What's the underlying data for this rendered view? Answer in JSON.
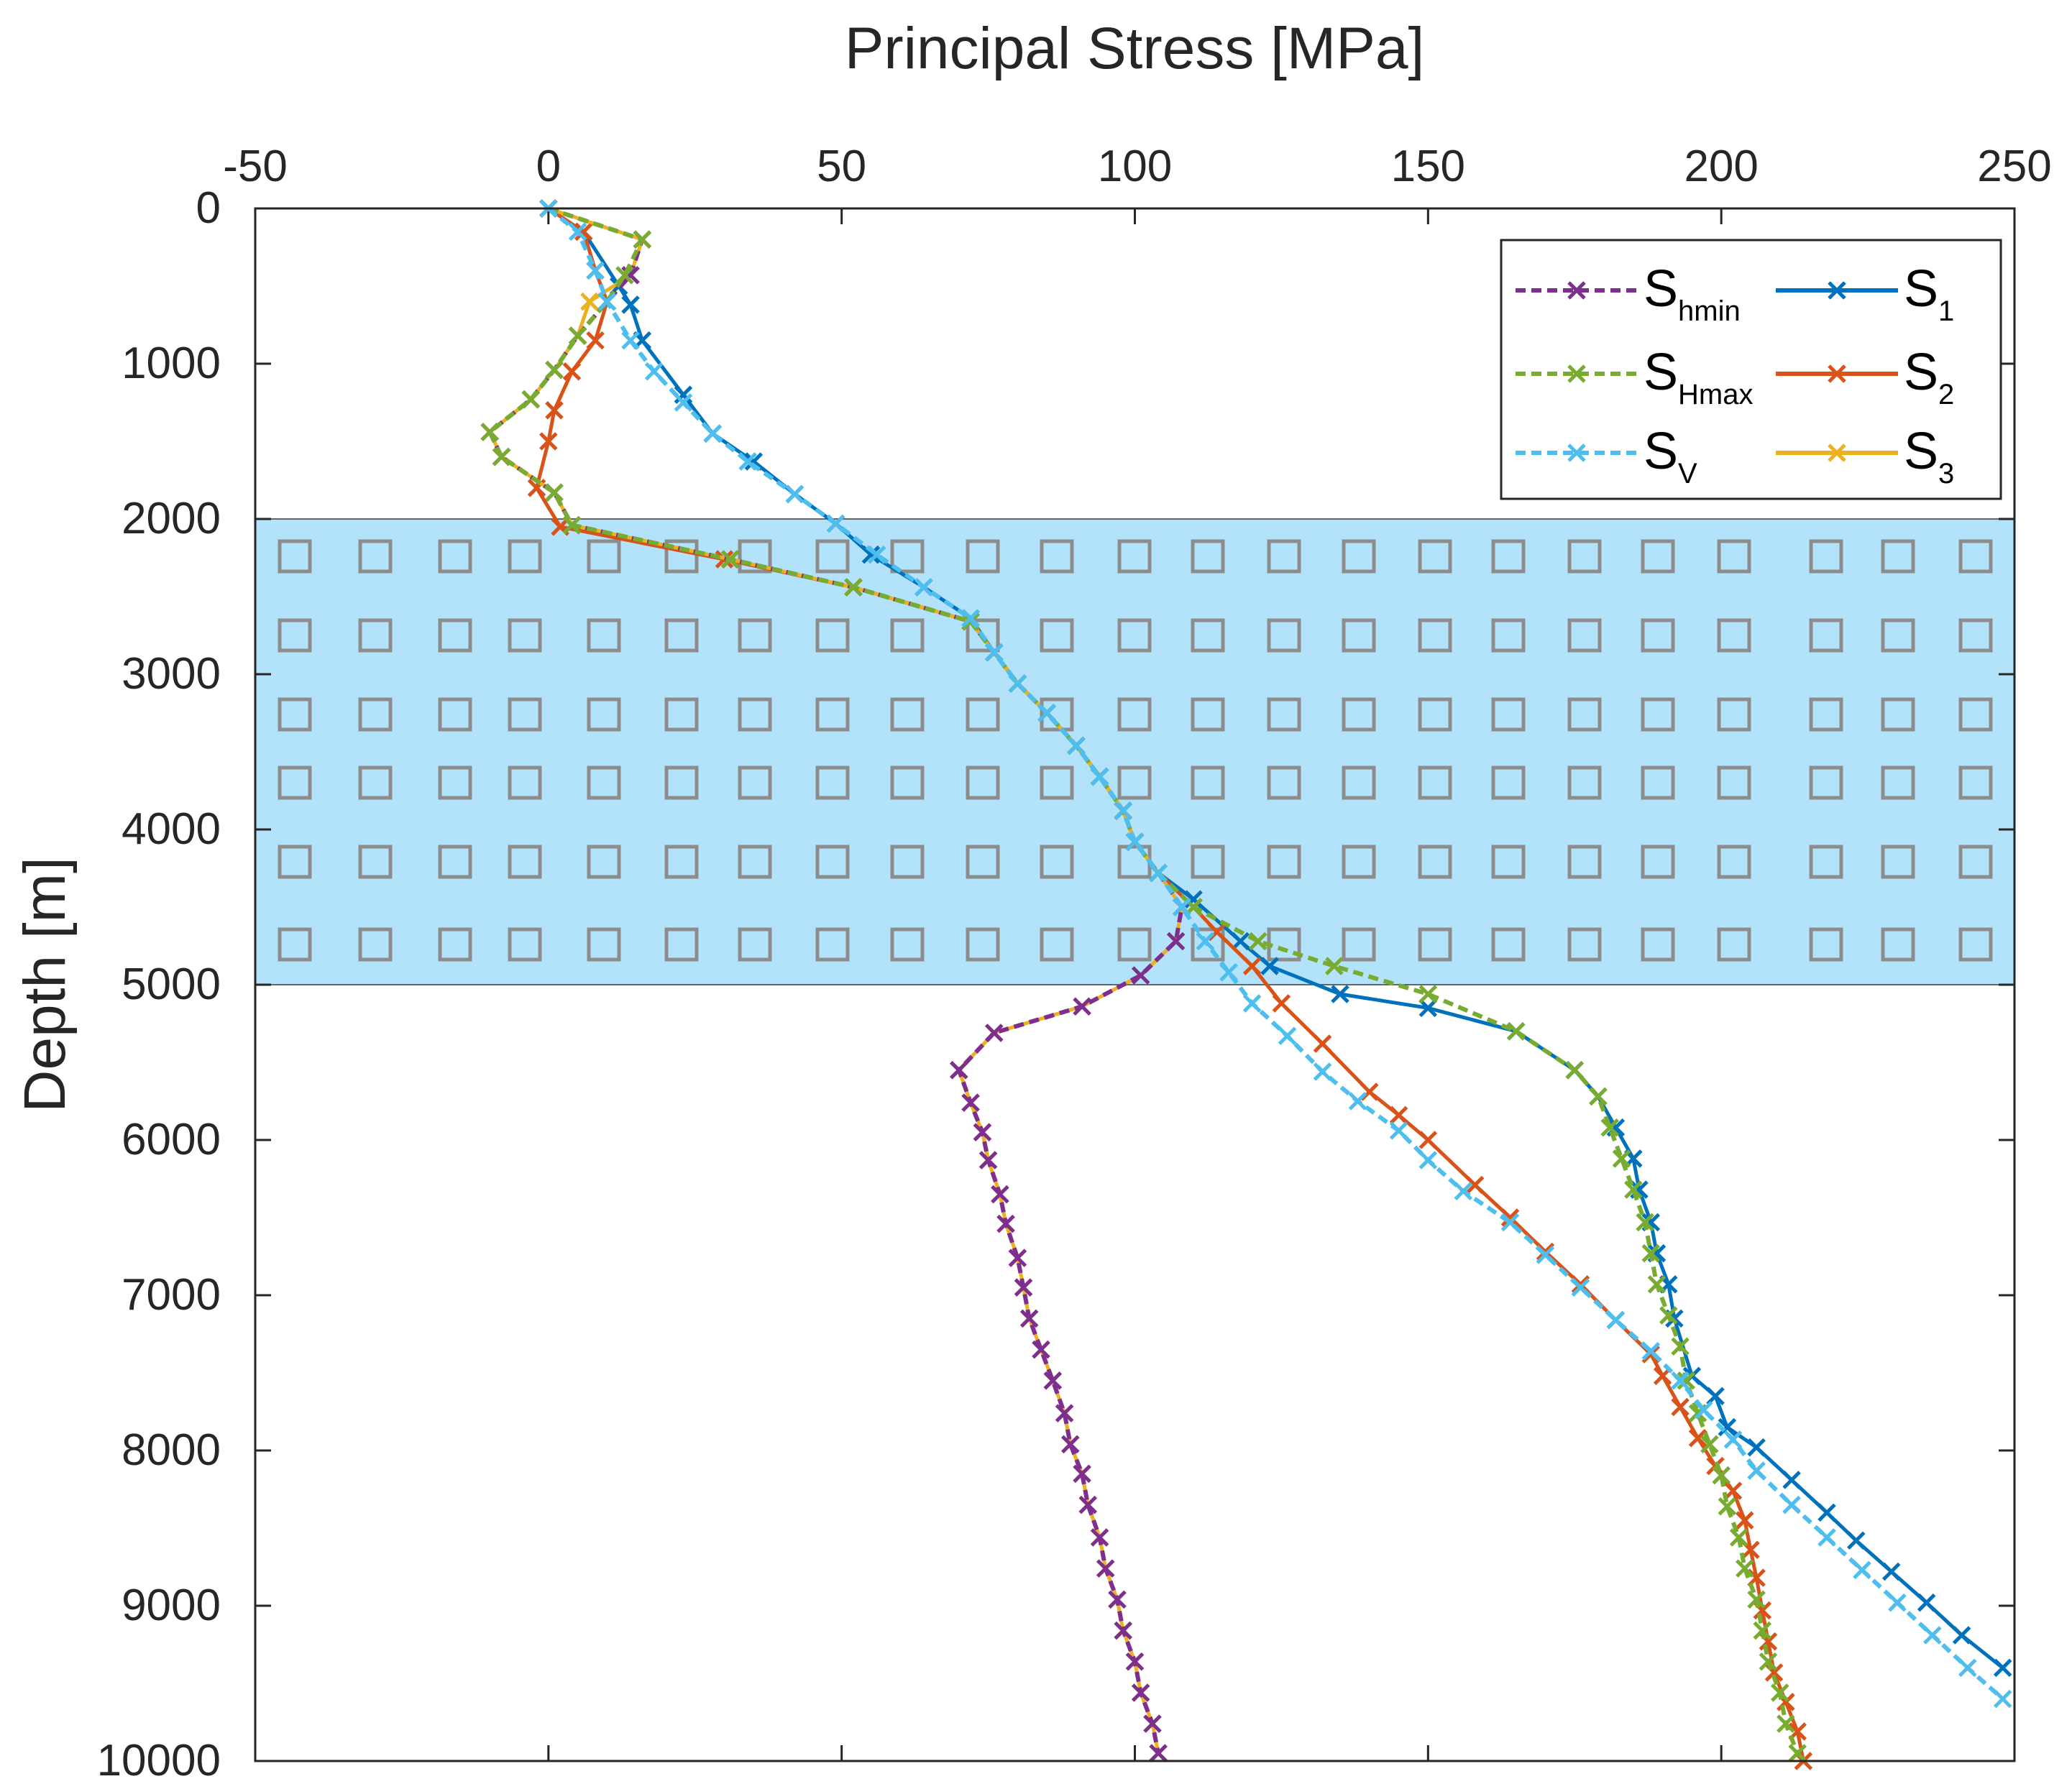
{
  "chart_data": {
    "type": "line",
    "title": "",
    "xlabel": "Principal Stress [MPa]",
    "ylabel": "Depth [m]",
    "xlim": [
      -50,
      250
    ],
    "ylim": [
      0,
      10000
    ],
    "y_reversed": true,
    "x_axis_position": "top",
    "xticks": [
      -50,
      0,
      50,
      100,
      150,
      200,
      250
    ],
    "yticks": [
      0,
      1000,
      2000,
      3000,
      4000,
      5000,
      6000,
      7000,
      8000,
      9000,
      10000
    ],
    "shaded_region": {
      "depth_from": 2000,
      "depth_to": 5000,
      "fill": "#b3e2fb",
      "marker": "square"
    },
    "legend_position": "top-right",
    "series": [
      {
        "name": "S1",
        "label_main": "S",
        "label_sub": "1",
        "style": "solid",
        "color": "#0072bd",
        "points": [
          [
            0,
            0
          ],
          [
            6,
            150
          ],
          [
            12,
            500
          ],
          [
            14,
            620
          ],
          [
            16,
            850
          ],
          [
            23,
            1200
          ],
          [
            28,
            1450
          ],
          [
            35,
            1630
          ],
          [
            42,
            1840
          ],
          [
            49,
            2030
          ],
          [
            55,
            2230
          ],
          [
            64,
            2440
          ],
          [
            72,
            2640
          ],
          [
            76,
            2860
          ],
          [
            80,
            3060
          ],
          [
            85,
            3250
          ],
          [
            90,
            3460
          ],
          [
            94,
            3660
          ],
          [
            98,
            3880
          ],
          [
            100,
            4080
          ],
          [
            104,
            4280
          ],
          [
            110,
            4450
          ],
          [
            118,
            4720
          ],
          [
            123,
            4880
          ],
          [
            135,
            5060
          ],
          [
            150,
            5150
          ],
          [
            165,
            5300
          ],
          [
            175,
            5550
          ],
          [
            179,
            5720
          ],
          [
            182,
            5920
          ],
          [
            185,
            6120
          ],
          [
            186,
            6320
          ],
          [
            188,
            6530
          ],
          [
            189,
            6730
          ],
          [
            191,
            6930
          ],
          [
            192,
            7150
          ],
          [
            195,
            7520
          ],
          [
            199,
            7650
          ],
          [
            201,
            7850
          ],
          [
            206,
            7980
          ],
          [
            212,
            8190
          ],
          [
            218,
            8400
          ],
          [
            223,
            8580
          ],
          [
            229,
            8780
          ],
          [
            235,
            8980
          ],
          [
            241,
            9190
          ],
          [
            248,
            9400
          ]
        ]
      },
      {
        "name": "S2",
        "label_main": "S",
        "label_sub": "2",
        "style": "solid",
        "color": "#d95319",
        "points": [
          [
            0,
            0
          ],
          [
            6,
            150
          ],
          [
            8,
            400
          ],
          [
            10,
            600
          ],
          [
            8,
            850
          ],
          [
            4,
            1050
          ],
          [
            1,
            1300
          ],
          [
            0,
            1500
          ],
          [
            -2,
            1800
          ],
          [
            2,
            2050
          ],
          [
            30,
            2260
          ],
          [
            52,
            2440
          ],
          [
            72,
            2660
          ],
          [
            76,
            2860
          ],
          [
            80,
            3060
          ],
          [
            85,
            3250
          ],
          [
            90,
            3460
          ],
          [
            94,
            3660
          ],
          [
            98,
            3880
          ],
          [
            100,
            4080
          ],
          [
            104,
            4280
          ],
          [
            110,
            4500
          ],
          [
            114,
            4660
          ],
          [
            120,
            4880
          ],
          [
            125,
            5120
          ],
          [
            132,
            5380
          ],
          [
            140,
            5690
          ],
          [
            145,
            5840
          ],
          [
            150,
            6000
          ],
          [
            158,
            6290
          ],
          [
            164,
            6500
          ],
          [
            170,
            6720
          ],
          [
            176,
            6930
          ],
          [
            182,
            7160
          ],
          [
            188,
            7380
          ],
          [
            190,
            7520
          ],
          [
            193,
            7720
          ],
          [
            196,
            7920
          ],
          [
            199,
            8100
          ],
          [
            202,
            8260
          ],
          [
            204,
            8450
          ],
          [
            205,
            8640
          ],
          [
            206,
            8820
          ],
          [
            207,
            9030
          ],
          [
            208,
            9230
          ],
          [
            209,
            9430
          ],
          [
            211,
            9620
          ],
          [
            213,
            9810
          ],
          [
            214,
            10000
          ]
        ]
      },
      {
        "name": "S3",
        "label_main": "S",
        "label_sub": "3",
        "style": "solid",
        "color": "#edb120",
        "points": [
          [
            0,
            0
          ],
          [
            16,
            200
          ],
          [
            14,
            430
          ],
          [
            7,
            600
          ],
          [
            5,
            820
          ],
          [
            1,
            1040
          ],
          [
            -3,
            1230
          ],
          [
            -10,
            1440
          ],
          [
            -8,
            1600
          ],
          [
            1,
            1830
          ],
          [
            4,
            2040
          ],
          [
            31,
            2260
          ],
          [
            52,
            2440
          ],
          [
            72,
            2660
          ],
          [
            76,
            2860
          ],
          [
            80,
            3060
          ],
          [
            85,
            3250
          ],
          [
            90,
            3460
          ],
          [
            94,
            3660
          ],
          [
            98,
            3880
          ],
          [
            100,
            4080
          ],
          [
            104,
            4280
          ],
          [
            108,
            4500
          ],
          [
            107,
            4720
          ],
          [
            101,
            4940
          ],
          [
            91,
            5140
          ],
          [
            76,
            5310
          ],
          [
            70,
            5550
          ],
          [
            72,
            5760
          ],
          [
            74,
            5950
          ],
          [
            75,
            6130
          ],
          [
            77,
            6350
          ],
          [
            78,
            6540
          ],
          [
            80,
            6760
          ],
          [
            81,
            6950
          ],
          [
            82,
            7150
          ],
          [
            84,
            7350
          ],
          [
            86,
            7550
          ],
          [
            88,
            7760
          ],
          [
            89,
            7960
          ],
          [
            91,
            8150
          ],
          [
            92,
            8350
          ],
          [
            94,
            8560
          ],
          [
            95,
            8760
          ],
          [
            97,
            8960
          ],
          [
            98,
            9160
          ],
          [
            100,
            9360
          ],
          [
            101,
            9560
          ],
          [
            103,
            9760
          ],
          [
            104,
            9950
          ]
        ]
      },
      {
        "name": "Shmin",
        "label_main": "S",
        "label_sub": "hmin",
        "style": "dashed",
        "color": "#7e2f8e",
        "points": [
          [
            0,
            0
          ],
          [
            16,
            200
          ],
          [
            14,
            430
          ],
          [
            10,
            600
          ],
          [
            5,
            820
          ],
          [
            1,
            1040
          ],
          [
            -3,
            1230
          ],
          [
            -10,
            1440
          ],
          [
            -8,
            1600
          ],
          [
            1,
            1830
          ],
          [
            4,
            2040
          ],
          [
            31,
            2260
          ],
          [
            52,
            2440
          ],
          [
            72,
            2660
          ],
          [
            76,
            2860
          ],
          [
            80,
            3060
          ],
          [
            85,
            3250
          ],
          [
            90,
            3460
          ],
          [
            94,
            3660
          ],
          [
            98,
            3880
          ],
          [
            100,
            4080
          ],
          [
            104,
            4280
          ],
          [
            108,
            4500
          ],
          [
            107,
            4720
          ],
          [
            101,
            4940
          ],
          [
            91,
            5140
          ],
          [
            76,
            5310
          ],
          [
            70,
            5550
          ],
          [
            72,
            5760
          ],
          [
            74,
            5950
          ],
          [
            75,
            6130
          ],
          [
            77,
            6350
          ],
          [
            78,
            6540
          ],
          [
            80,
            6760
          ],
          [
            81,
            6950
          ],
          [
            82,
            7150
          ],
          [
            84,
            7350
          ],
          [
            86,
            7550
          ],
          [
            88,
            7760
          ],
          [
            89,
            7960
          ],
          [
            91,
            8150
          ],
          [
            92,
            8350
          ],
          [
            94,
            8560
          ],
          [
            95,
            8760
          ],
          [
            97,
            8960
          ],
          [
            98,
            9160
          ],
          [
            100,
            9360
          ],
          [
            101,
            9560
          ],
          [
            103,
            9760
          ],
          [
            104,
            9950
          ]
        ]
      },
      {
        "name": "SHmax",
        "label_main": "S",
        "label_sub": "Hmax",
        "style": "dashed",
        "color": "#77ac30",
        "points": [
          [
            0,
            0
          ],
          [
            16,
            200
          ],
          [
            13,
            430
          ],
          [
            10,
            600
          ],
          [
            5,
            820
          ],
          [
            1,
            1040
          ],
          [
            -3,
            1230
          ],
          [
            -10,
            1440
          ],
          [
            -8,
            1600
          ],
          [
            1,
            1830
          ],
          [
            4,
            2040
          ],
          [
            31,
            2260
          ],
          [
            52,
            2440
          ],
          [
            72,
            2660
          ],
          [
            76,
            2860
          ],
          [
            80,
            3060
          ],
          [
            85,
            3250
          ],
          [
            90,
            3460
          ],
          [
            94,
            3660
          ],
          [
            98,
            3880
          ],
          [
            100,
            4080
          ],
          [
            104,
            4280
          ],
          [
            110,
            4500
          ],
          [
            121,
            4720
          ],
          [
            134,
            4880
          ],
          [
            150,
            5060
          ],
          [
            165,
            5300
          ],
          [
            175,
            5550
          ],
          [
            179,
            5720
          ],
          [
            181,
            5920
          ],
          [
            183,
            6120
          ],
          [
            185,
            6320
          ],
          [
            187,
            6530
          ],
          [
            188,
            6730
          ],
          [
            189,
            6930
          ],
          [
            191,
            7130
          ],
          [
            193,
            7330
          ],
          [
            194,
            7550
          ],
          [
            196,
            7760
          ],
          [
            198,
            7960
          ],
          [
            200,
            8160
          ],
          [
            201,
            8360
          ],
          [
            203,
            8560
          ],
          [
            204,
            8760
          ],
          [
            206,
            8960
          ],
          [
            207,
            9160
          ],
          [
            208,
            9360
          ],
          [
            210,
            9560
          ],
          [
            211,
            9760
          ],
          [
            213,
            9950
          ]
        ]
      },
      {
        "name": "SV",
        "label_main": "S",
        "label_sub": "V",
        "style": "dashed",
        "color": "#4dbeee",
        "points": [
          [
            0,
            0
          ],
          [
            5,
            150
          ],
          [
            8,
            400
          ],
          [
            10,
            600
          ],
          [
            14,
            850
          ],
          [
            18,
            1050
          ],
          [
            23,
            1250
          ],
          [
            28,
            1450
          ],
          [
            34,
            1630
          ],
          [
            42,
            1840
          ],
          [
            49,
            2030
          ],
          [
            56,
            2230
          ],
          [
            64,
            2440
          ],
          [
            72,
            2640
          ],
          [
            76,
            2860
          ],
          [
            80,
            3060
          ],
          [
            85,
            3250
          ],
          [
            90,
            3460
          ],
          [
            94,
            3660
          ],
          [
            98,
            3880
          ],
          [
            100,
            4080
          ],
          [
            104,
            4280
          ],
          [
            108,
            4500
          ],
          [
            112,
            4720
          ],
          [
            116,
            4920
          ],
          [
            120,
            5120
          ],
          [
            126,
            5330
          ],
          [
            132,
            5560
          ],
          [
            138,
            5750
          ],
          [
            145,
            5940
          ],
          [
            150,
            6130
          ],
          [
            156,
            6330
          ],
          [
            164,
            6530
          ],
          [
            170,
            6740
          ],
          [
            176,
            6950
          ],
          [
            182,
            7160
          ],
          [
            188,
            7360
          ],
          [
            193,
            7550
          ],
          [
            197,
            7740
          ],
          [
            202,
            7930
          ],
          [
            206,
            8130
          ],
          [
            212,
            8350
          ],
          [
            218,
            8560
          ],
          [
            224,
            8770
          ],
          [
            230,
            8980
          ],
          [
            236,
            9190
          ],
          [
            242,
            9400
          ],
          [
            248,
            9600
          ]
        ]
      }
    ]
  }
}
